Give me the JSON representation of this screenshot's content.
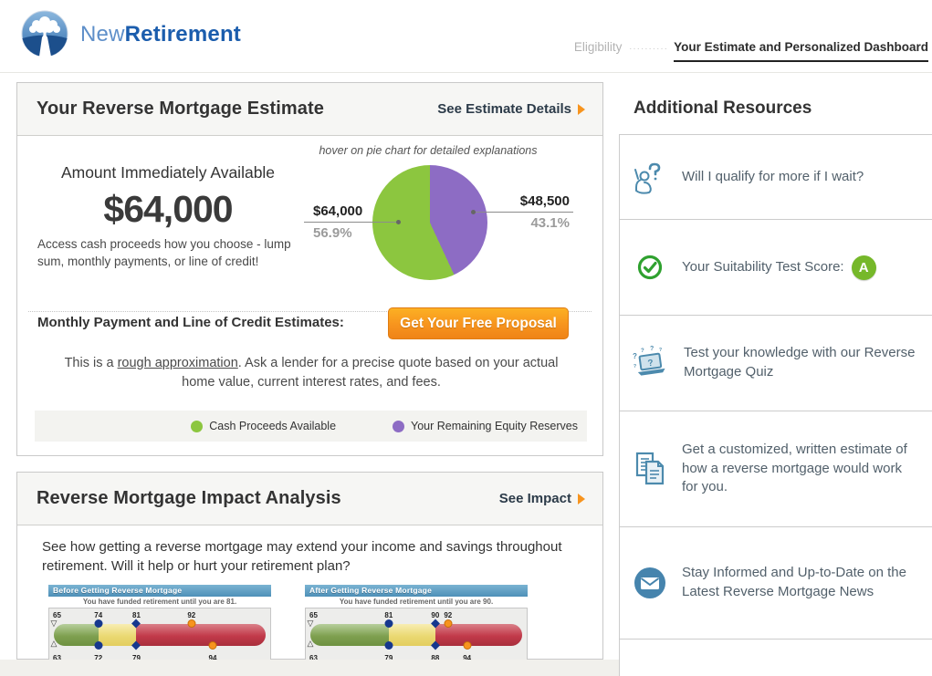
{
  "header": {
    "brand_first": "New",
    "brand_second": "Retirement",
    "nav_eligibility": "Eligibility",
    "nav_dots": "..........",
    "nav_current": "Your Estimate and Personalized Dashboard"
  },
  "estimate_card": {
    "title": "Your Reverse Mortgage Estimate",
    "details_link": "See Estimate Details",
    "hover_hint": "hover on pie chart for detailed explanations",
    "amount_label": "Amount Immediately Available",
    "amount": "$64,000",
    "amount_desc": "Access cash proceeds how you choose - lump sum, monthly payments, or line of credit!",
    "monthly_label": "Monthly Payment and Line of Credit Estimates:",
    "proposal_button": "Get Your Free Proposal",
    "disclaimer_pre": "This is a ",
    "disclaimer_underlined": "rough approximation",
    "disclaimer_post": ". Ask a lender for a precise quote based on your actual home value, current interest rates, and fees."
  },
  "impact_card": {
    "title": "Reverse Mortgage Impact Analysis",
    "impact_link": "See Impact",
    "description": "See how getting a reverse mortgage may extend your income and savings throughout retirement.  Will it help or hurt your retirement plan?"
  },
  "chart_data": [
    {
      "type": "pie",
      "legend_position": "bottom",
      "slices": [
        {
          "label": "Cash Proceeds Available",
          "value": 64000,
          "display_value": "$64,000",
          "percent": 56.9,
          "percent_label": "56.9%",
          "color": "#8cc63f"
        },
        {
          "label": "Your Remaining Equity Reserves",
          "value": 48500,
          "display_value": "$48,500",
          "percent": 43.1,
          "percent_label": "43.1%",
          "color": "#8d6cc4"
        }
      ]
    },
    {
      "type": "timeline-bar",
      "title": "Before Getting Reverse Mortgage",
      "subtitle": "You have funded retirement until you are 81.",
      "funded_until_age": 81,
      "segments": [
        {
          "color": "green",
          "width_pct": 21
        },
        {
          "color": "yellow",
          "width_pct": 18
        },
        {
          "color": "red",
          "width_pct": 61
        }
      ],
      "markers_top": [
        {
          "age": 65,
          "shape": "triangle-down",
          "pos_pct": 0
        },
        {
          "age": 74,
          "shape": "circle-blue",
          "pos_pct": 21
        },
        {
          "age": 81,
          "shape": "diamond-blue",
          "pos_pct": 39
        },
        {
          "age": 92,
          "shape": "circle-orange",
          "pos_pct": 65
        }
      ],
      "markers_bottom": [
        {
          "age": 63,
          "shape": "triangle-up",
          "pos_pct": 0
        },
        {
          "age": 72,
          "shape": "circle-blue",
          "pos_pct": 21
        },
        {
          "age": 79,
          "shape": "diamond-blue",
          "pos_pct": 39
        },
        {
          "age": 94,
          "shape": "circle-orange",
          "pos_pct": 75
        }
      ]
    },
    {
      "type": "timeline-bar",
      "title": "After Getting Reverse Mortgage",
      "subtitle": "You have funded retirement until you are 90.",
      "funded_until_age": 90,
      "segments": [
        {
          "color": "green",
          "width_pct": 37
        },
        {
          "color": "yellow",
          "width_pct": 22
        },
        {
          "color": "red",
          "width_pct": 41
        }
      ],
      "markers_top": [
        {
          "age": 65,
          "shape": "triangle-down",
          "pos_pct": 0
        },
        {
          "age": 81,
          "shape": "circle-blue",
          "pos_pct": 37
        },
        {
          "age": 90,
          "shape": "diamond-blue",
          "pos_pct": 59
        },
        {
          "age": 92,
          "shape": "circle-orange",
          "pos_pct": 65
        }
      ],
      "markers_bottom": [
        {
          "age": 63,
          "shape": "triangle-up",
          "pos_pct": 0
        },
        {
          "age": 79,
          "shape": "circle-blue",
          "pos_pct": 37
        },
        {
          "age": 88,
          "shape": "diamond-blue",
          "pos_pct": 59
        },
        {
          "age": 94,
          "shape": "circle-orange",
          "pos_pct": 74
        }
      ]
    }
  ],
  "sidebar": {
    "title": "Additional Resources",
    "items": [
      {
        "icon": "raised-hand-question-icon",
        "text": "Will I qualify for more if I wait?"
      },
      {
        "icon": "check-circle-icon",
        "text": "Your Suitability Test Score:",
        "badge": "A"
      },
      {
        "icon": "quiz-laptop-icon",
        "text": "Test your knowledge with our Reverse Mortgage Quiz"
      },
      {
        "icon": "documents-icon",
        "text": "Get a customized, written estimate of how a reverse mortgage would work for you."
      },
      {
        "icon": "envelope-circle-icon",
        "text": "Stay Informed and Up-to-Date on the Latest Reverse Mortgage News"
      }
    ]
  },
  "colors": {
    "accent_orange": "#f7941e",
    "pie_green": "#8cc63f",
    "pie_purple": "#8d6cc4",
    "icon_blue": "#4c8aad",
    "badge_green": "#76b82a"
  }
}
